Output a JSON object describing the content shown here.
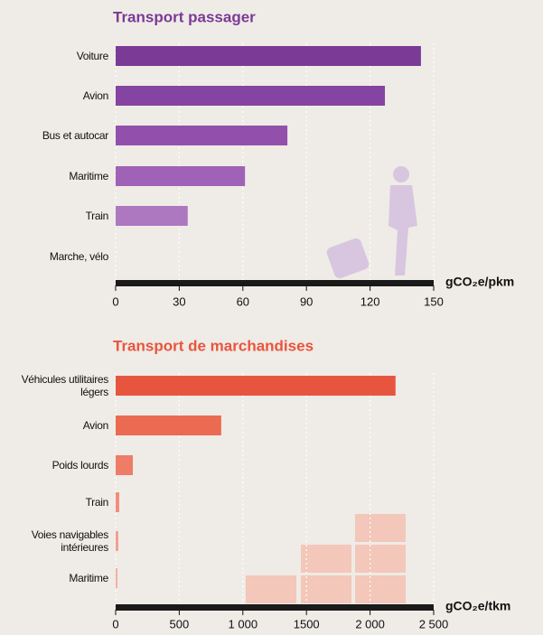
{
  "chart_data": [
    {
      "type": "bar",
      "orientation": "horizontal",
      "title": "Transport passager",
      "categories": [
        "Voiture",
        "Avion",
        "Bus et autocar",
        "Maritime",
        "Train",
        "Marche, vélo"
      ],
      "values": [
        144,
        127,
        81,
        61,
        34,
        0
      ],
      "colors": [
        "#7a3a96",
        "#8544a2",
        "#9250ac",
        "#a062b6",
        "#ad78c0",
        "#b88ac8"
      ],
      "title_color": "#7a3a96",
      "x_label": "gCO₂e/pkm",
      "xlim": [
        0,
        150
      ],
      "xticks": [
        0,
        30,
        60,
        90,
        120,
        150
      ],
      "grid": true
    },
    {
      "type": "bar",
      "orientation": "horizontal",
      "title": "Transport de marchandises",
      "categories": [
        "Véhicules utilitaires légers",
        "Avion",
        "Poids lourds",
        "Train",
        "Voies navigables intérieures",
        "Maritime"
      ],
      "values": [
        2200,
        830,
        135,
        28,
        21,
        14
      ],
      "colors": [
        "#e8553e",
        "#eb6a52",
        "#ee7c66",
        "#f08e7a",
        "#f29f8e",
        "#f4aea0"
      ],
      "title_color": "#e8553e",
      "x_label": "gCO₂e/tkm",
      "xlim": [
        0,
        2500
      ],
      "xticks": [
        0,
        500,
        {
          "value": 1000,
          "label": "1 000"
        },
        1500,
        {
          "value": 2000,
          "label": "2 000"
        },
        {
          "value": 2500,
          "label": "2 500"
        }
      ],
      "grid": true
    }
  ]
}
